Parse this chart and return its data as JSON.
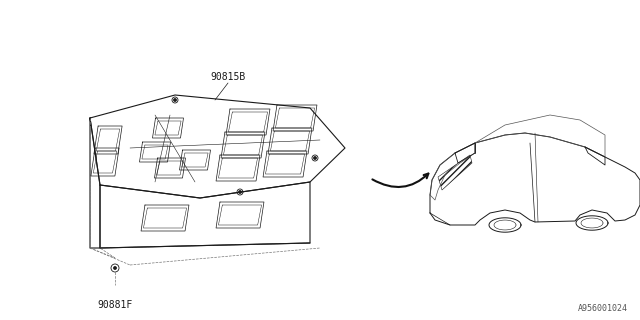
{
  "bg_color": "#ffffff",
  "line_color": "#1a1a1a",
  "dash_color": "#777777",
  "label_90815B": "90815B",
  "label_90881F": "90881F",
  "ref_code": "A956001024"
}
